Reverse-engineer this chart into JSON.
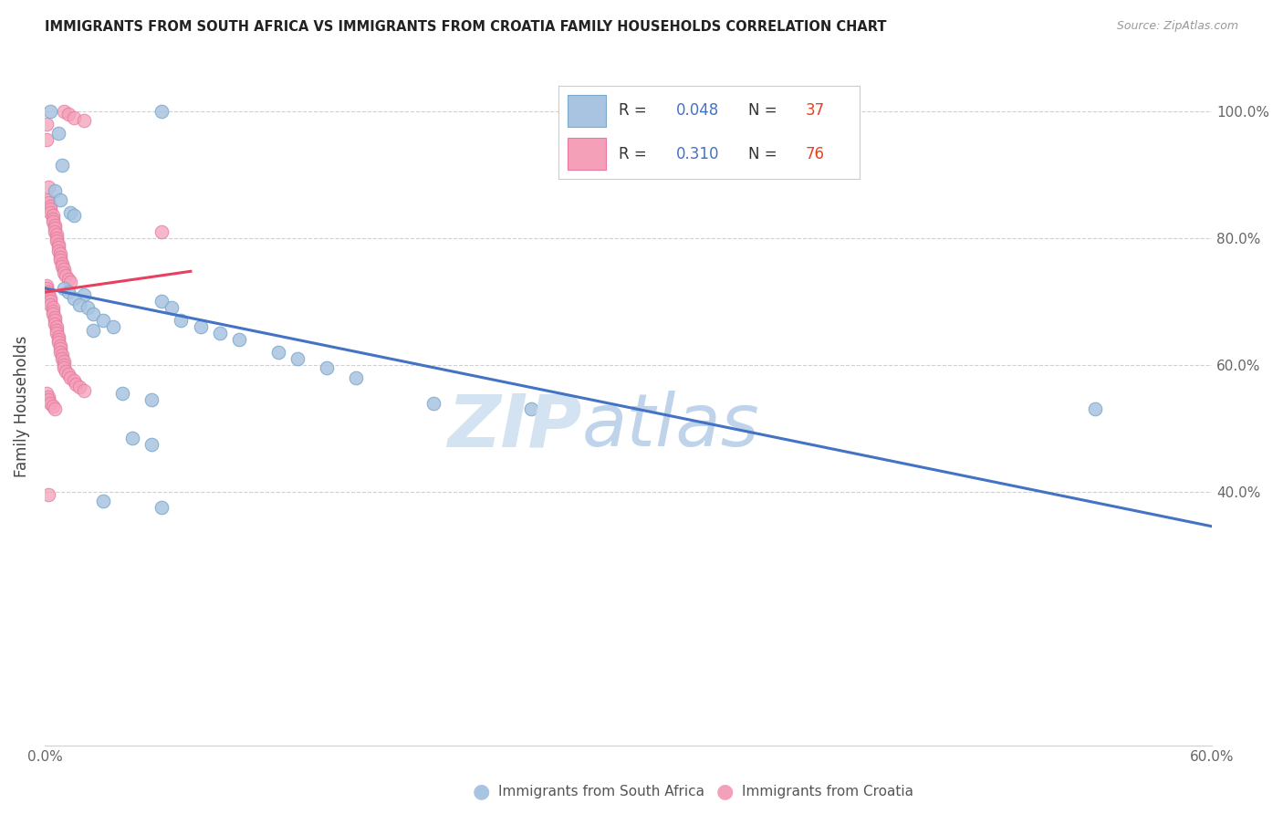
{
  "title": "IMMIGRANTS FROM SOUTH AFRICA VS IMMIGRANTS FROM CROATIA FAMILY HOUSEHOLDS CORRELATION CHART",
  "source": "Source: ZipAtlas.com",
  "ylabel": "Family Households",
  "xlabel_blue": "Immigrants from South Africa",
  "xlabel_pink": "Immigrants from Croatia",
  "legend_blue_R": "0.048",
  "legend_blue_N": "37",
  "legend_pink_R": "0.310",
  "legend_pink_N": "76",
  "xmin": 0.0,
  "xmax": 0.6,
  "ymin": 0.0,
  "ymax": 1.07,
  "yticks": [
    0.4,
    0.6,
    0.8,
    1.0
  ],
  "ytick_labels": [
    "40.0%",
    "60.0%",
    "80.0%",
    "100.0%"
  ],
  "xticks": [
    0.0,
    0.1,
    0.2,
    0.3,
    0.4,
    0.5,
    0.6
  ],
  "xtick_labels": [
    "0.0%",
    "",
    "",
    "",
    "",
    "",
    "60.0%"
  ],
  "blue_color": "#a8c4e0",
  "blue_edge_color": "#7aaace",
  "pink_color": "#f4a0b8",
  "pink_edge_color": "#e878a0",
  "blue_line_color": "#4472c4",
  "pink_line_color": "#e84060",
  "title_color": "#222222",
  "legend_R_color": "#4472c4",
  "legend_N_color": "#e84020",
  "grid_color": "#d0d0d0",
  "background_color": "#ffffff",
  "blue_scatter": [
    [
      0.003,
      1.0
    ],
    [
      0.007,
      0.965
    ],
    [
      0.009,
      0.915
    ],
    [
      0.005,
      0.875
    ],
    [
      0.008,
      0.86
    ],
    [
      0.013,
      0.84
    ],
    [
      0.015,
      0.835
    ],
    [
      0.01,
      0.72
    ],
    [
      0.012,
      0.715
    ],
    [
      0.02,
      0.71
    ],
    [
      0.015,
      0.705
    ],
    [
      0.018,
      0.695
    ],
    [
      0.022,
      0.69
    ],
    [
      0.025,
      0.68
    ],
    [
      0.03,
      0.67
    ],
    [
      0.035,
      0.66
    ],
    [
      0.025,
      0.655
    ],
    [
      0.06,
      0.7
    ],
    [
      0.065,
      0.69
    ],
    [
      0.07,
      0.67
    ],
    [
      0.08,
      0.66
    ],
    [
      0.09,
      0.65
    ],
    [
      0.1,
      0.64
    ],
    [
      0.12,
      0.62
    ],
    [
      0.13,
      0.61
    ],
    [
      0.145,
      0.595
    ],
    [
      0.16,
      0.58
    ],
    [
      0.04,
      0.555
    ],
    [
      0.055,
      0.545
    ],
    [
      0.2,
      0.54
    ],
    [
      0.25,
      0.53
    ],
    [
      0.045,
      0.485
    ],
    [
      0.055,
      0.475
    ],
    [
      0.03,
      0.385
    ],
    [
      0.06,
      0.375
    ],
    [
      0.54,
      0.53
    ],
    [
      0.06,
      1.0
    ]
  ],
  "pink_scatter": [
    [
      0.001,
      0.98
    ],
    [
      0.001,
      0.955
    ],
    [
      0.002,
      0.88
    ],
    [
      0.002,
      0.86
    ],
    [
      0.002,
      0.855
    ],
    [
      0.003,
      0.85
    ],
    [
      0.003,
      0.845
    ],
    [
      0.003,
      0.84
    ],
    [
      0.004,
      0.835
    ],
    [
      0.004,
      0.83
    ],
    [
      0.004,
      0.825
    ],
    [
      0.005,
      0.82
    ],
    [
      0.005,
      0.815
    ],
    [
      0.005,
      0.81
    ],
    [
      0.006,
      0.805
    ],
    [
      0.006,
      0.8
    ],
    [
      0.006,
      0.795
    ],
    [
      0.007,
      0.79
    ],
    [
      0.007,
      0.785
    ],
    [
      0.007,
      0.78
    ],
    [
      0.008,
      0.775
    ],
    [
      0.008,
      0.77
    ],
    [
      0.008,
      0.765
    ],
    [
      0.009,
      0.76
    ],
    [
      0.009,
      0.755
    ],
    [
      0.01,
      0.75
    ],
    [
      0.01,
      0.745
    ],
    [
      0.011,
      0.74
    ],
    [
      0.012,
      0.735
    ],
    [
      0.013,
      0.73
    ],
    [
      0.001,
      0.725
    ],
    [
      0.001,
      0.72
    ],
    [
      0.002,
      0.715
    ],
    [
      0.002,
      0.71
    ],
    [
      0.003,
      0.705
    ],
    [
      0.003,
      0.7
    ],
    [
      0.003,
      0.695
    ],
    [
      0.004,
      0.69
    ],
    [
      0.004,
      0.685
    ],
    [
      0.004,
      0.68
    ],
    [
      0.005,
      0.675
    ],
    [
      0.005,
      0.67
    ],
    [
      0.005,
      0.665
    ],
    [
      0.006,
      0.66
    ],
    [
      0.006,
      0.655
    ],
    [
      0.006,
      0.65
    ],
    [
      0.007,
      0.645
    ],
    [
      0.007,
      0.64
    ],
    [
      0.007,
      0.635
    ],
    [
      0.008,
      0.63
    ],
    [
      0.008,
      0.625
    ],
    [
      0.008,
      0.62
    ],
    [
      0.009,
      0.615
    ],
    [
      0.009,
      0.61
    ],
    [
      0.01,
      0.605
    ],
    [
      0.01,
      0.6
    ],
    [
      0.01,
      0.595
    ],
    [
      0.011,
      0.59
    ],
    [
      0.012,
      0.585
    ],
    [
      0.013,
      0.58
    ],
    [
      0.015,
      0.575
    ],
    [
      0.016,
      0.57
    ],
    [
      0.018,
      0.565
    ],
    [
      0.02,
      0.56
    ],
    [
      0.001,
      0.555
    ],
    [
      0.002,
      0.55
    ],
    [
      0.002,
      0.545
    ],
    [
      0.003,
      0.54
    ],
    [
      0.004,
      0.535
    ],
    [
      0.005,
      0.53
    ],
    [
      0.06,
      0.81
    ],
    [
      0.002,
      0.395
    ],
    [
      0.01,
      1.0
    ],
    [
      0.012,
      0.995
    ],
    [
      0.015,
      0.99
    ],
    [
      0.02,
      0.985
    ]
  ],
  "watermark_zip": "ZIP",
  "watermark_atlas": "atlas",
  "watermark_color": "#d0e0f0"
}
